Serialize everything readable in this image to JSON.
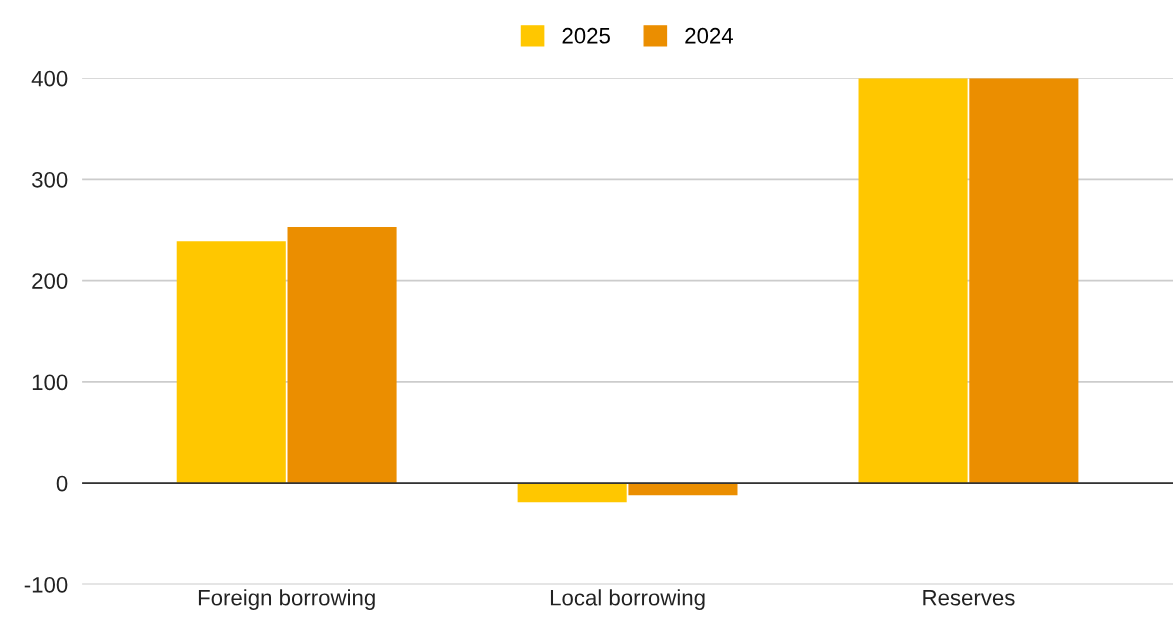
{
  "chart_data": {
    "type": "bar",
    "categories": [
      "Foreign borrowing",
      "Local borrowing",
      "Reserves"
    ],
    "series": [
      {
        "name": "2025",
        "color": "#ffc700",
        "values": [
          239,
          -19,
          400
        ]
      },
      {
        "name": "2024",
        "color": "#eb8e00",
        "values": [
          253,
          -12,
          400
        ]
      }
    ],
    "ylim": [
      -100,
      400
    ],
    "yticks": [
      -100,
      0,
      100,
      200,
      300,
      400
    ],
    "grid": "y",
    "legend": "top"
  }
}
